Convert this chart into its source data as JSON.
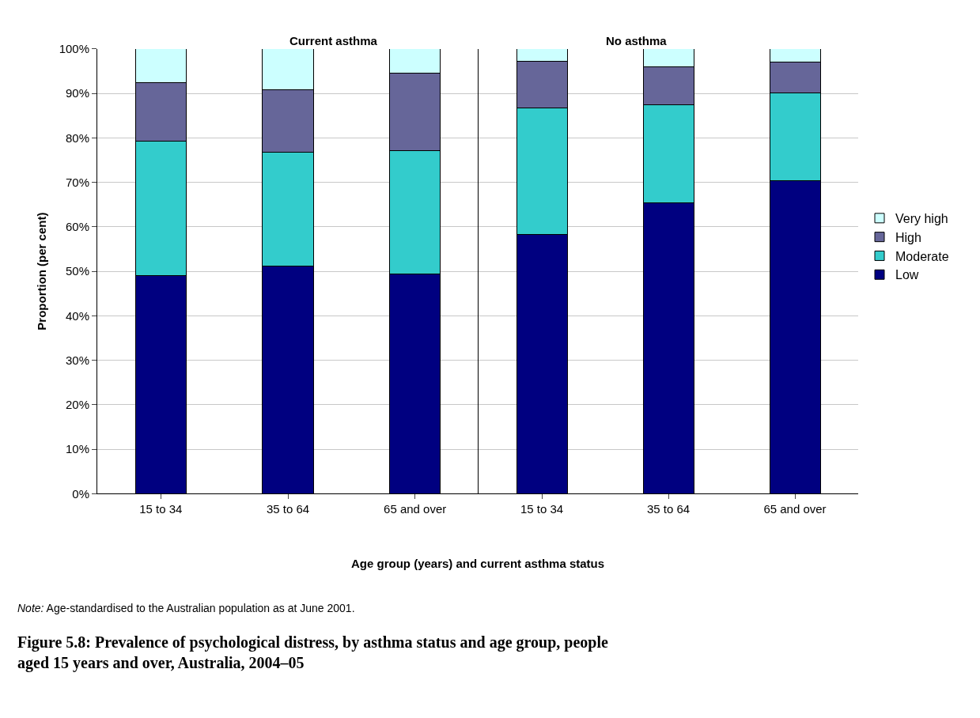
{
  "chart_data": [
    {
      "type": "bar",
      "stacked": true,
      "title": "Current asthma",
      "ylabel": "Proportion (per cent)",
      "xlabel": "Age group (years) and current asthma status",
      "categories": [
        "15 to 34",
        "35 to 64",
        "65 and over"
      ],
      "series": [
        {
          "name": "Low",
          "color": "#000080",
          "values": [
            49.0,
            51.2,
            49.4
          ]
        },
        {
          "name": "Moderate",
          "color": "#33cccc",
          "values": [
            30.3,
            25.5,
            27.7
          ]
        },
        {
          "name": "High",
          "color": "#666699",
          "values": [
            13.1,
            14.1,
            17.4
          ]
        },
        {
          "name": "Very high",
          "color": "#ccffff",
          "values": [
            7.6,
            9.2,
            5.5
          ]
        }
      ],
      "ylim": [
        0,
        100
      ],
      "yticks": [
        {
          "value": 0,
          "label": "0%"
        },
        {
          "value": 10,
          "label": "10%"
        },
        {
          "value": 20,
          "label": "20%"
        },
        {
          "value": 30,
          "label": "30%"
        },
        {
          "value": 40,
          "label": "40%"
        },
        {
          "value": 50,
          "label": "50%"
        },
        {
          "value": 60,
          "label": "60%"
        },
        {
          "value": 70,
          "label": "70%"
        },
        {
          "value": 80,
          "label": "80%"
        },
        {
          "value": 90,
          "label": "90%"
        },
        {
          "value": 100,
          "label": "100%"
        }
      ],
      "grid": "y",
      "legend": "right",
      "annotations": [
        "Note: Age-standardised to the Australian population as at June 2001.",
        "Figure 5.8: Prevalence of psychological distress, by asthma status and age group, people aged 15 years and over, Australia, 2004–05"
      ]
    },
    {
      "type": "bar",
      "stacked": true,
      "title": "No asthma",
      "categories": [
        "15 to 34",
        "35 to 64",
        "65 and over"
      ],
      "series": [
        {
          "color": "#000080",
          "values": [
            58.3,
            65.4,
            70.4
          ]
        },
        {
          "color": "#33cccc",
          "values": [
            28.5,
            22.1,
            19.7
          ]
        },
        {
          "color": "#666699",
          "values": [
            10.5,
            8.5,
            7.0
          ]
        },
        {
          "color": "#ccffff",
          "values": [
            2.7,
            4.0,
            2.9
          ]
        }
      ],
      "ylim": [
        0,
        100
      ],
      "grid": "y",
      "tick_labels": "x"
    }
  ]
}
